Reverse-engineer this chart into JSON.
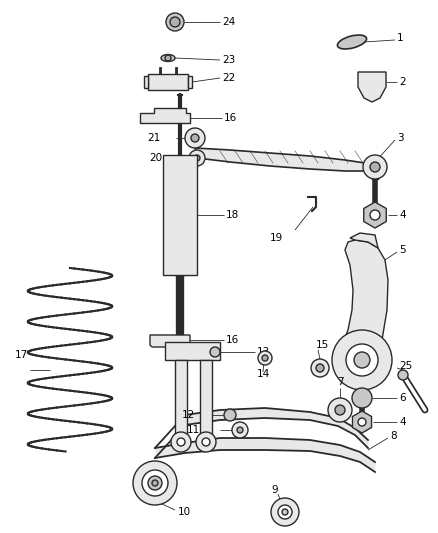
{
  "background_color": "#ffffff",
  "fig_width": 4.38,
  "fig_height": 5.33,
  "dpi": 100,
  "line_color": "#2a2a2a",
  "text_color": "#000000",
  "label_fontsize": 7.5,
  "leader_lw": 0.6,
  "part_lw": 1.0,
  "part_fill": "#e8e8e8",
  "part_fill2": "#c8c8c8",
  "part_fill3": "#b0b0b0"
}
